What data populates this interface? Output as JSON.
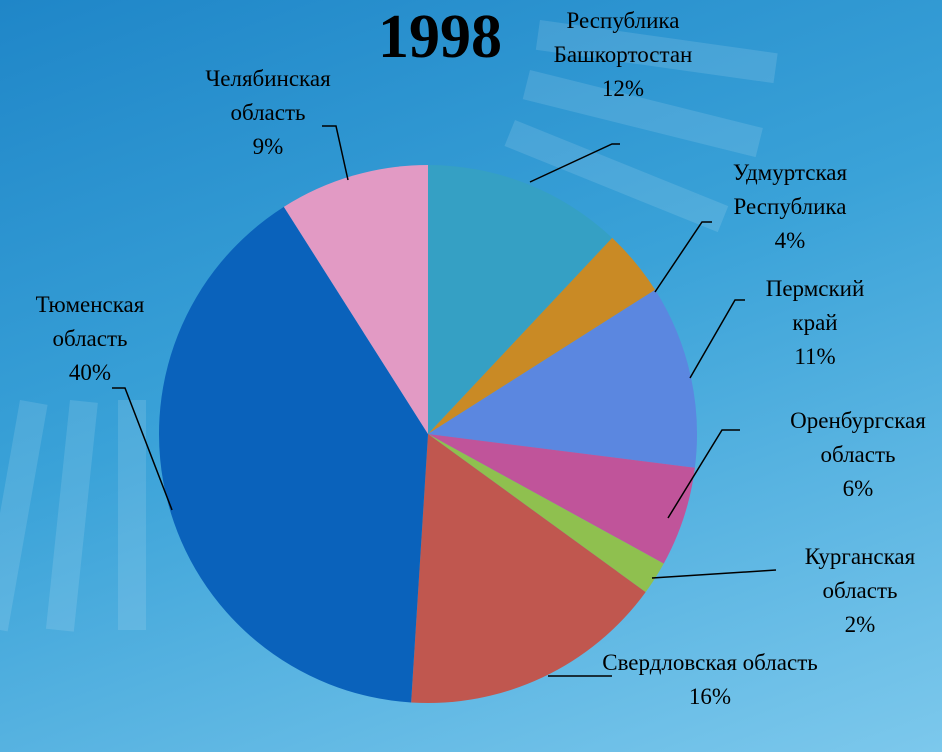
{
  "chart_data": {
    "type": "pie",
    "title": "1998",
    "categories": [
      "Республика Башкортостан",
      "Удмуртская Республика",
      "Пермский край",
      "Оренбургская область",
      "Курганская область",
      "Свердловская область",
      "Тюменская область",
      "Челябинская область"
    ],
    "values": [
      12,
      4,
      11,
      6,
      2,
      16,
      40,
      9
    ],
    "value_labels": [
      "12%",
      "4%",
      "11%",
      "6%",
      "2%",
      "16%",
      "40%",
      "9%"
    ],
    "colors": [
      "#35a0c4",
      "#c98a25",
      "#5b87e0",
      "#c0549a",
      "#8fc04f",
      "#c0574f",
      "#0a62bb",
      "#e29ac4"
    ]
  }
}
